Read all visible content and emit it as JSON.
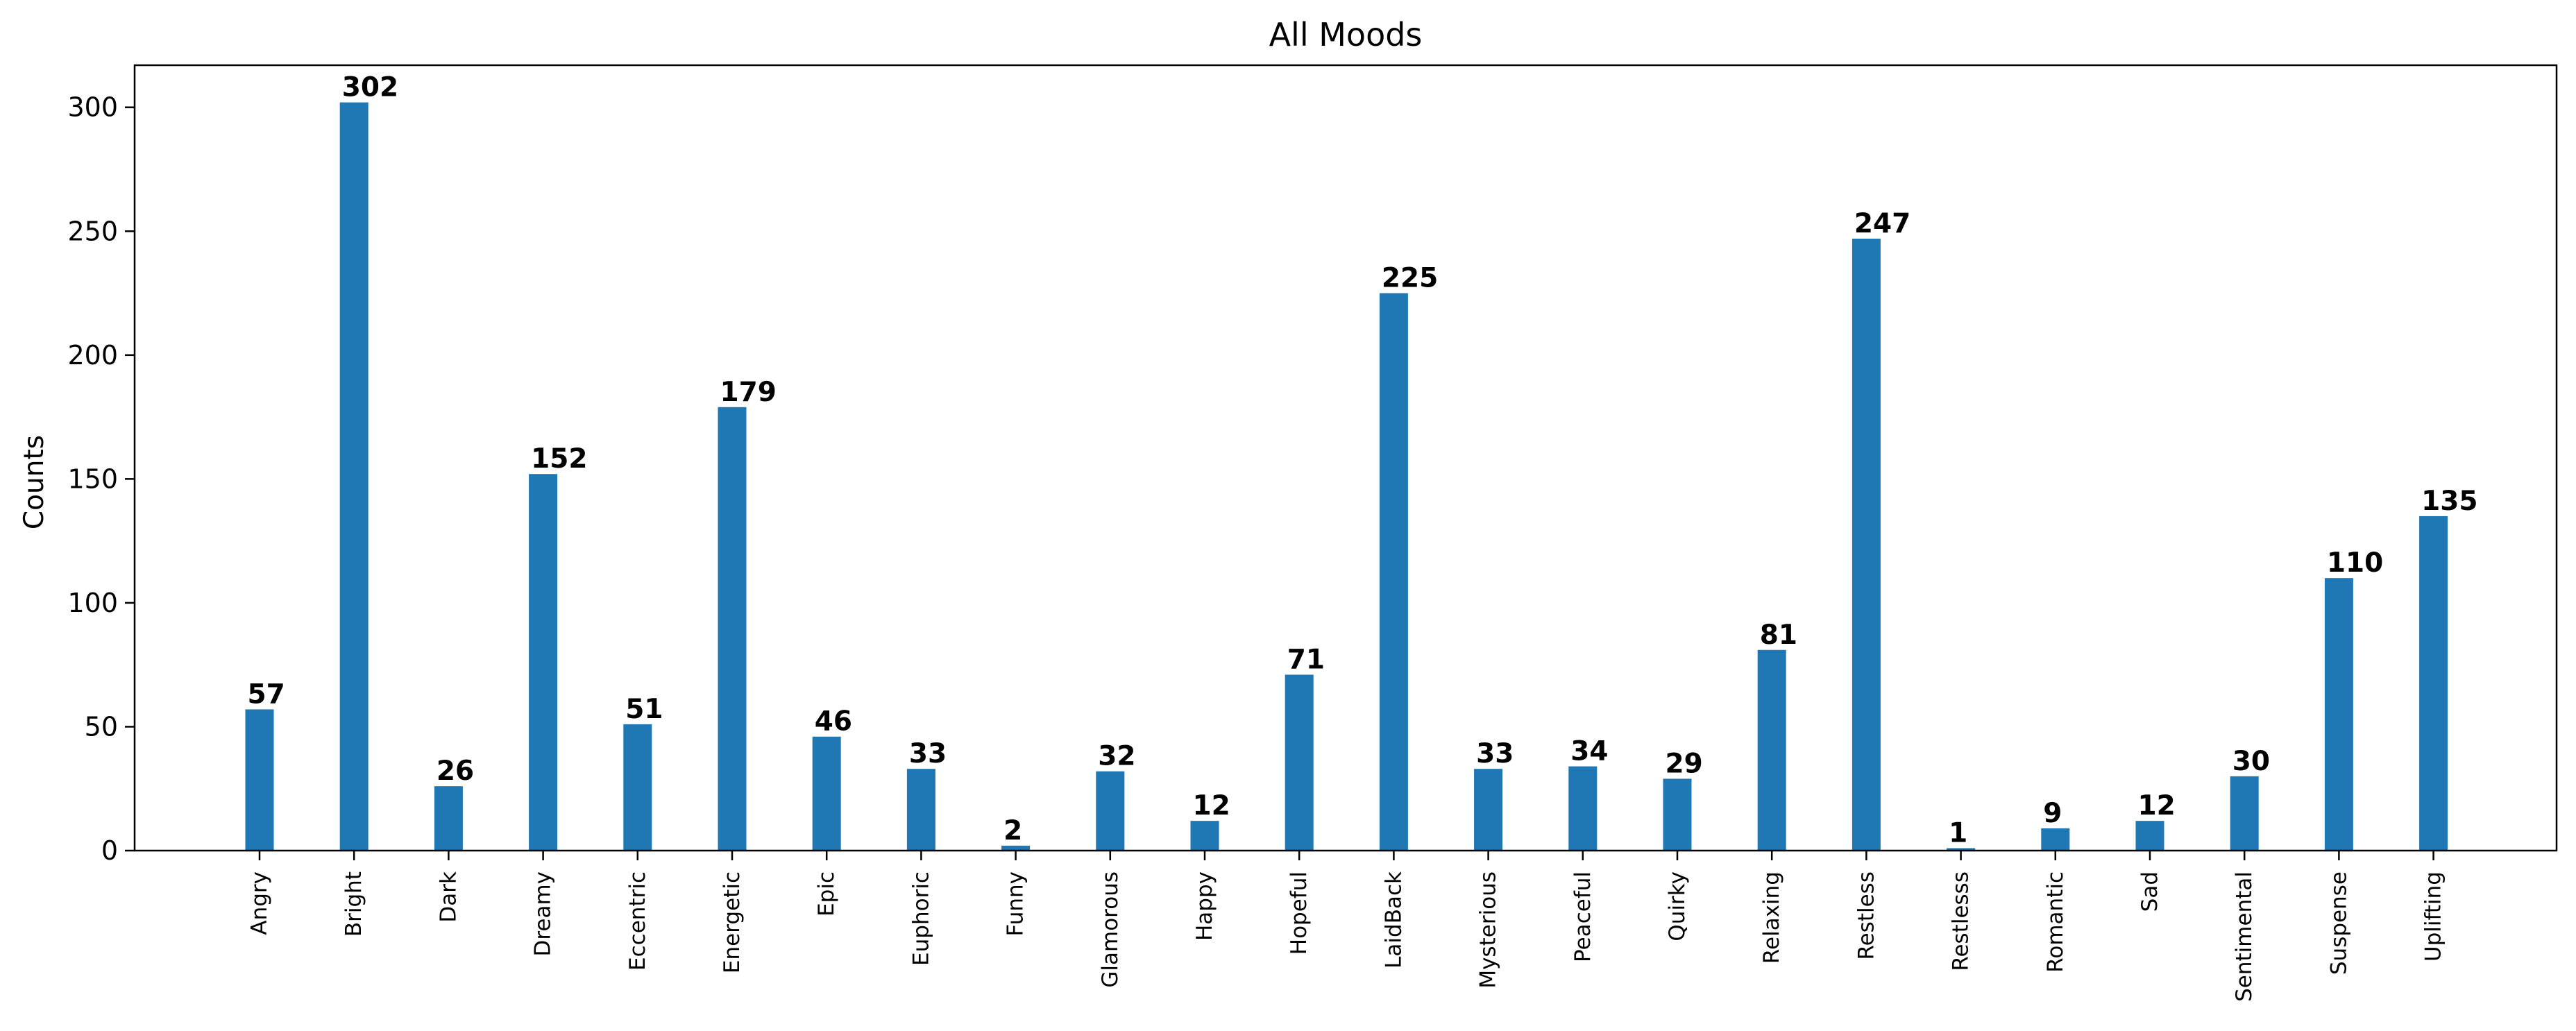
{
  "chart_data": {
    "type": "bar",
    "title": "All Moods",
    "xlabel": "",
    "ylabel": "Counts",
    "ylim": [
      0,
      317
    ],
    "yticks": [
      0,
      50,
      100,
      150,
      200,
      250,
      300
    ],
    "grid": false,
    "legend": "none",
    "bar_color": "#1f77b4",
    "categories": [
      "Angry",
      "Bright",
      "Dark",
      "Dreamy",
      "Eccentric",
      "Energetic",
      "Epic",
      "Euphoric",
      "Funny",
      "Glamorous",
      "Happy",
      "Hopeful",
      "LaidBack",
      "Mysterious",
      "Peaceful",
      "Quirky",
      "Relaxing",
      "Restless",
      "Restlesss",
      "Romantic",
      "Sad",
      "Sentimental",
      "Suspense",
      "Uplifting"
    ],
    "values": [
      57,
      302,
      26,
      152,
      51,
      179,
      46,
      33,
      2,
      32,
      12,
      71,
      225,
      33,
      34,
      29,
      81,
      247,
      1,
      9,
      12,
      30,
      110,
      135
    ]
  }
}
